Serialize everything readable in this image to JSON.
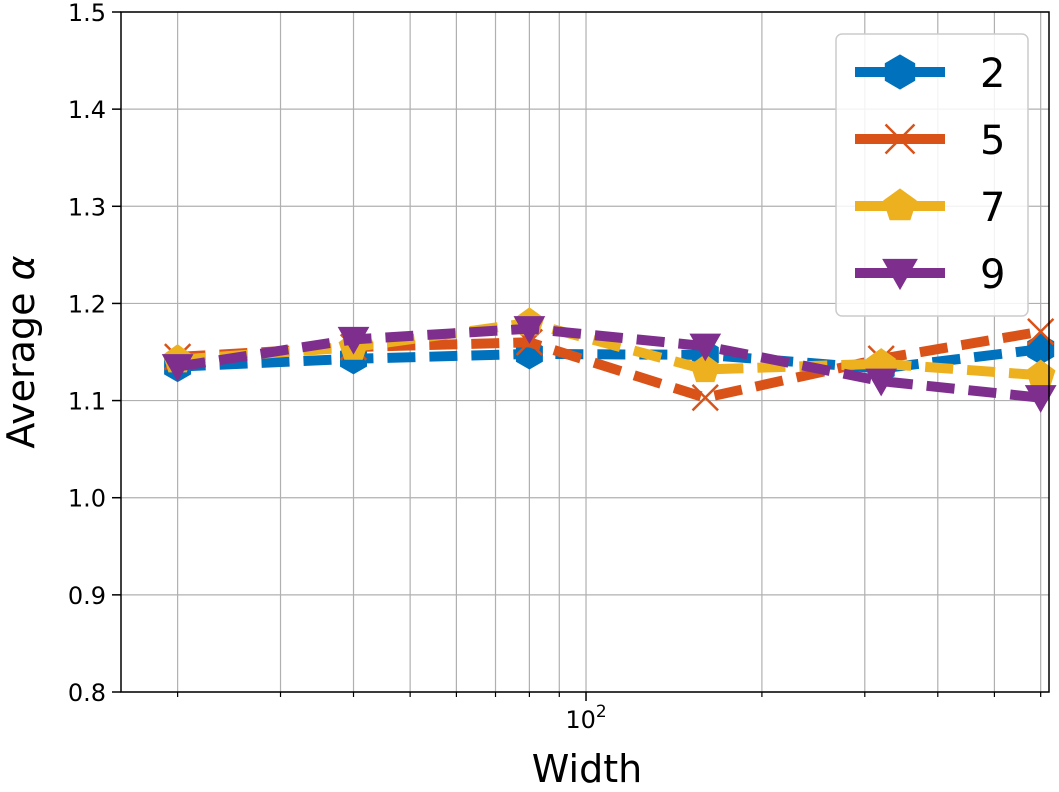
{
  "chart_data": {
    "type": "line",
    "title": "",
    "xlabel": "Width",
    "ylabel_text": "Average",
    "ylabel_symbol": "α",
    "x_scale": "log",
    "xlim": [
      16,
      620
    ],
    "ylim": [
      0.8,
      1.5
    ],
    "grid": true,
    "legend_position": "top-right",
    "x": [
      20,
      40,
      80,
      160,
      320,
      600
    ],
    "y_ticks": [
      0.8,
      0.9,
      1.0,
      1.1,
      1.2,
      1.3,
      1.4,
      1.5
    ],
    "y_tick_labels": [
      "0.8",
      "0.9",
      "1.0",
      "1.1",
      "1.2",
      "1.3",
      "1.4",
      "1.5"
    ],
    "x_major_ticks": [
      100
    ],
    "x_major_tick_base": "10",
    "x_major_tick_exponent": "2",
    "x_minor_ticks": [
      20,
      30,
      40,
      50,
      60,
      70,
      80,
      90,
      200,
      300,
      400,
      500,
      600
    ],
    "series": [
      {
        "name": "2",
        "color": "#0072BD",
        "marker": "hexagon",
        "values": [
          1.135,
          1.143,
          1.148,
          1.147,
          1.133,
          1.153
        ]
      },
      {
        "name": "5",
        "color": "#D95319",
        "marker": "x",
        "values": [
          1.145,
          1.155,
          1.16,
          1.103,
          1.143,
          1.171
        ]
      },
      {
        "name": "7",
        "color": "#EDB120",
        "marker": "pentagon",
        "values": [
          1.142,
          1.155,
          1.18,
          1.132,
          1.138,
          1.126
        ]
      },
      {
        "name": "9",
        "color": "#7E2F8E",
        "marker": "triangle-down",
        "values": [
          1.135,
          1.163,
          1.174,
          1.156,
          1.12,
          1.103
        ]
      }
    ]
  }
}
